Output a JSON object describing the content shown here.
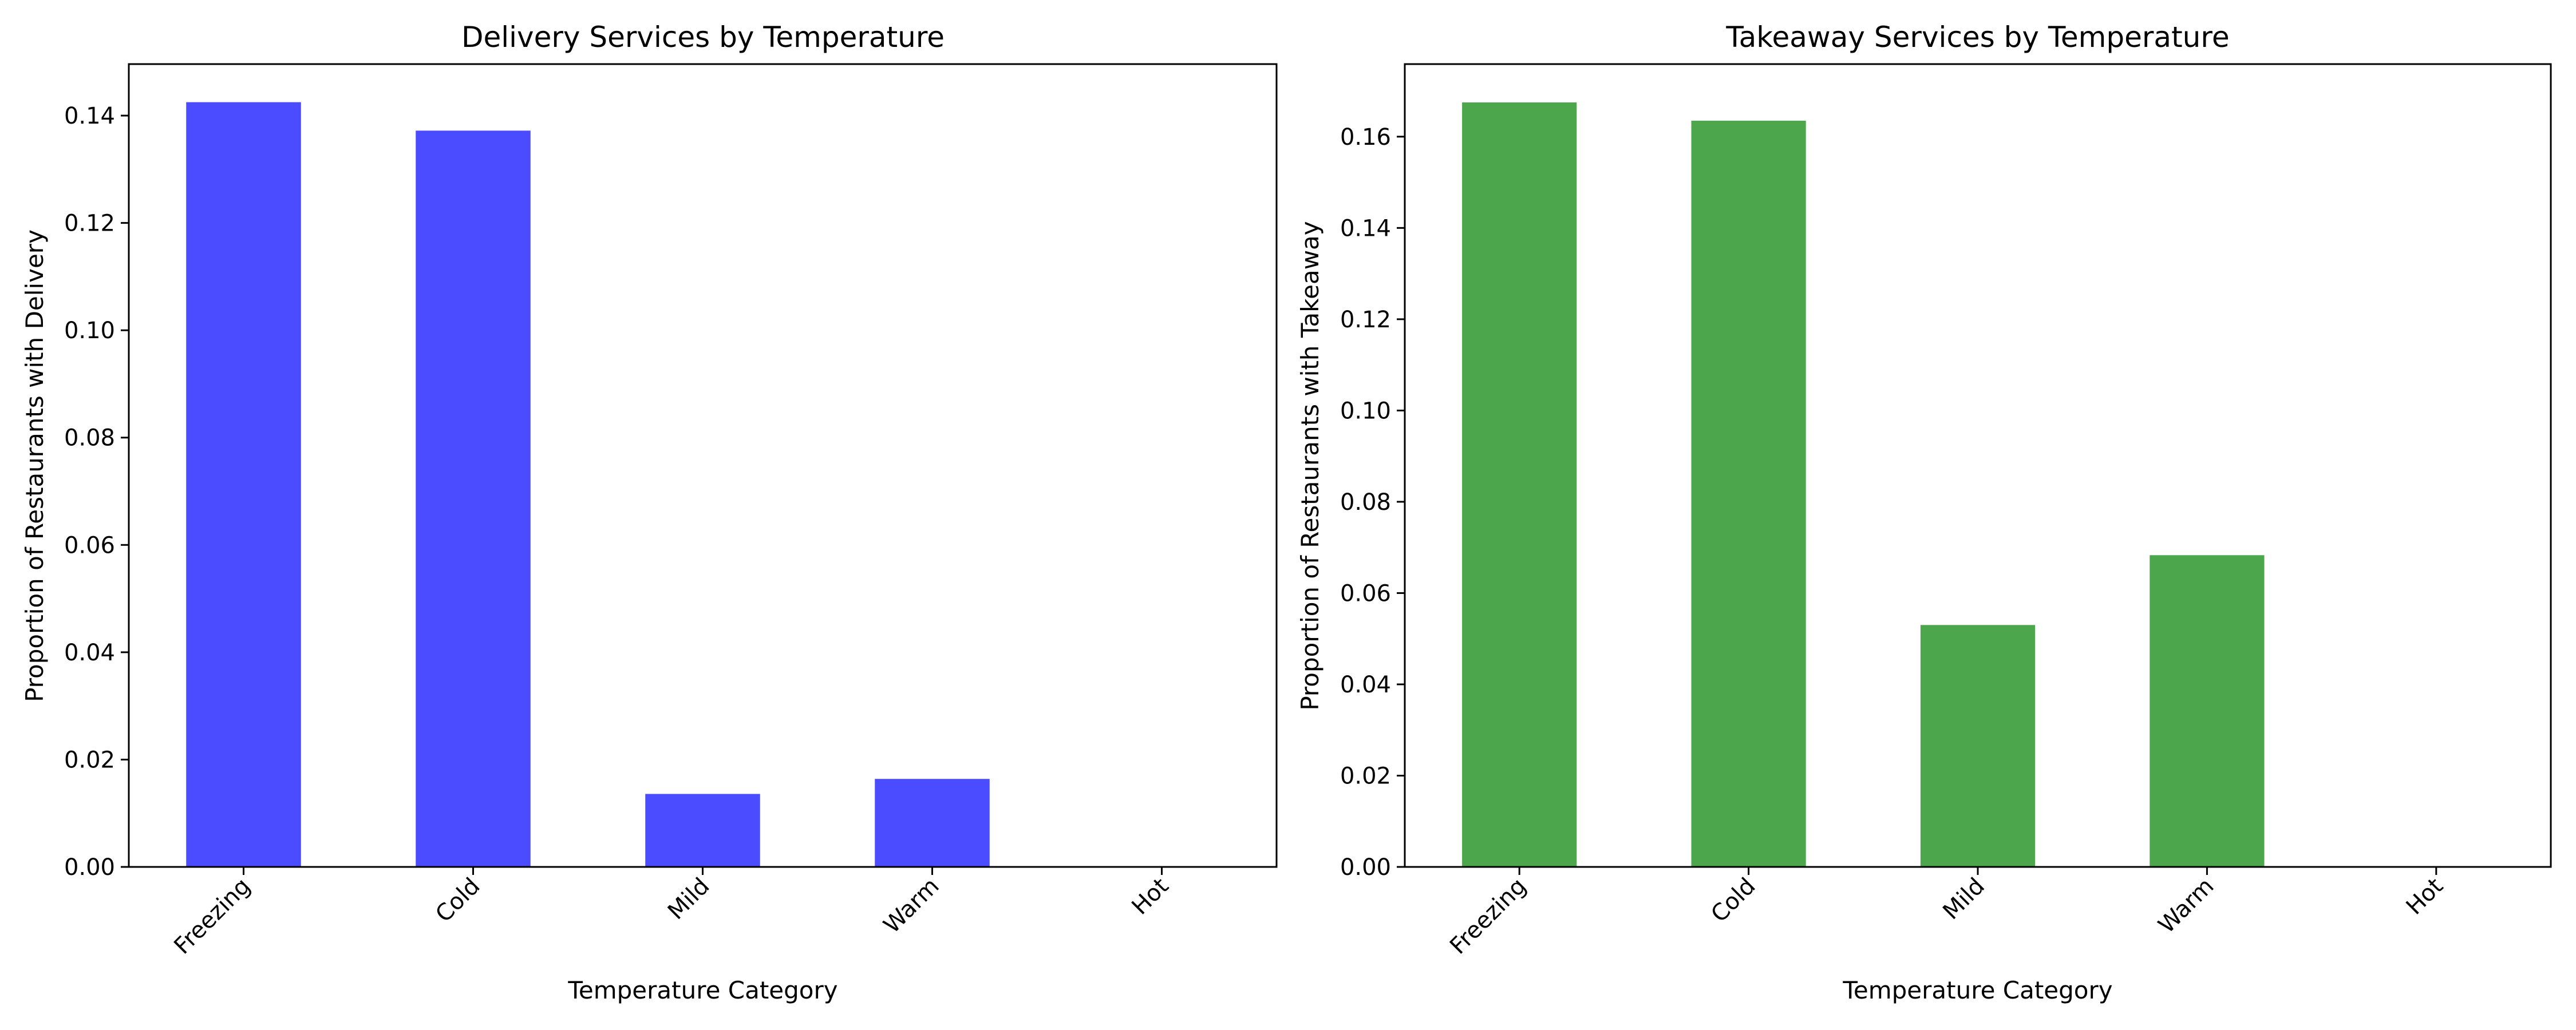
{
  "chart_data": [
    {
      "type": "bar",
      "title": "Delivery Services by Temperature",
      "xlabel": "Temperature Category",
      "ylabel": "Proportion of Restaurants with Delivery",
      "categories": [
        "Freezing",
        "Cold",
        "Mild",
        "Warm",
        "Hot"
      ],
      "values": [
        0.1425,
        0.1372,
        0.0136,
        0.0164,
        0.0
      ],
      "ylim": [
        0,
        0.1496
      ],
      "yticks": [
        0.0,
        0.02,
        0.04,
        0.06,
        0.08,
        0.1,
        0.12,
        0.14
      ],
      "ytick_labels": [
        "0.00",
        "0.02",
        "0.04",
        "0.06",
        "0.08",
        "0.10",
        "0.12",
        "0.14"
      ],
      "color": "#4b4bff",
      "grid": false,
      "legend": "none"
    },
    {
      "type": "bar",
      "title": "Takeaway Services by Temperature",
      "xlabel": "Temperature Category",
      "ylabel": "Proportion of Restaurants with Takeaway",
      "categories": [
        "Freezing",
        "Cold",
        "Mild",
        "Warm",
        "Hot"
      ],
      "values": [
        0.1675,
        0.1635,
        0.053,
        0.0683,
        0.0
      ],
      "ylim": [
        0,
        0.1759
      ],
      "yticks": [
        0.0,
        0.02,
        0.04,
        0.06,
        0.08,
        0.1,
        0.12,
        0.14,
        0.16
      ],
      "ytick_labels": [
        "0.00",
        "0.02",
        "0.04",
        "0.06",
        "0.08",
        "0.10",
        "0.12",
        "0.14",
        "0.16"
      ],
      "color": "#4ca64c",
      "grid": false,
      "legend": "none"
    }
  ]
}
